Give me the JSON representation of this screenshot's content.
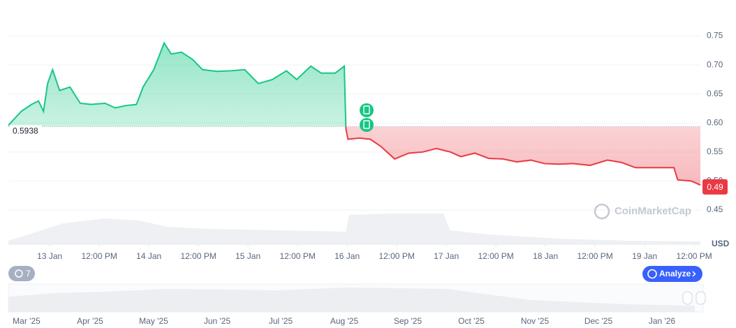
{
  "chart_data": {
    "type": "line",
    "x": [
      -10,
      -6.9,
      -4.4,
      -2.7,
      -1.5,
      -0.5,
      0.7,
      2.4,
      4.9,
      7.4,
      10,
      13.4,
      15.9,
      18.4,
      21,
      22.6,
      25.2,
      27.7,
      29.4,
      31.9,
      34.5,
      37,
      40.4,
      43.8,
      47.2,
      50.5,
      53.9,
      57.3,
      59.8,
      63.2,
      65.7,
      69.1,
      71.3,
      71.7,
      72.2,
      75,
      77.6,
      80.1,
      83.5,
      86.9,
      90.3,
      93.6,
      97,
      99.5,
      102.9,
      106.3,
      109.7,
      113.1,
      116.5,
      119.8,
      123.2,
      126.6,
      130.8,
      135,
      138.4,
      141.8,
      145.2,
      148.6,
      151.1,
      152,
      155.3,
      157.5
    ],
    "values": [
      0.596,
      0.62,
      0.632,
      0.638,
      0.62,
      0.668,
      0.692,
      0.656,
      0.662,
      0.634,
      0.632,
      0.634,
      0.626,
      0.63,
      0.632,
      0.662,
      0.692,
      0.738,
      0.719,
      0.722,
      0.71,
      0.692,
      0.689,
      0.69,
      0.692,
      0.668,
      0.675,
      0.69,
      0.675,
      0.698,
      0.686,
      0.686,
      0.698,
      0.59,
      0.572,
      0.574,
      0.572,
      0.56,
      0.538,
      0.548,
      0.55,
      0.556,
      0.55,
      0.542,
      0.548,
      0.539,
      0.538,
      0.533,
      0.536,
      0.53,
      0.529,
      0.53,
      0.527,
      0.536,
      0.532,
      0.523,
      0.523,
      0.523,
      0.523,
      0.502,
      0.5,
      0.493
    ],
    "up_color": "#16c784",
    "down_color": "#ea3943",
    "baseline": 0.5938,
    "current_price": 0.49,
    "xlim": [
      -10,
      157.5
    ],
    "xticks": [
      {
        "value": 0,
        "label": "13 Jan"
      },
      {
        "value": 12,
        "label": "12:00 PM"
      },
      {
        "value": 24,
        "label": "14 Jan"
      },
      {
        "value": 36,
        "label": "12:00 PM"
      },
      {
        "value": 48,
        "label": "15 Jan"
      },
      {
        "value": 60,
        "label": "12:00 PM"
      },
      {
        "value": 72,
        "label": "16 Jan"
      },
      {
        "value": 84,
        "label": "12:00 PM"
      },
      {
        "value": 96,
        "label": "17 Jan"
      },
      {
        "value": 108,
        "label": "12:00 PM"
      },
      {
        "value": 120,
        "label": "18 Jan"
      },
      {
        "value": 132,
        "label": "12:00 PM"
      },
      {
        "value": 144,
        "label": "19 Jan"
      },
      {
        "value": 156,
        "label": "12:00 PM"
      }
    ],
    "ylim": [
      0.4,
      0.8
    ],
    "yticks": [
      0.45,
      {
        "value": 0.5,
        "label": "0.50"
      },
      0.55,
      {
        "value": 0.6,
        "label": "0.60"
      },
      0.65,
      {
        "value": 0.7,
        "label": "0.70"
      },
      0.75
    ],
    "y_unit": "USD",
    "grid": true,
    "watermark": "CoinMarketCap",
    "events_count": "7",
    "analyze_button": "Analyze",
    "navigator_labels": [
      "Mar '25",
      "Apr '25",
      "May '25",
      "Jun '25",
      "Jul '25",
      "Aug '25",
      "Sep '25",
      "Oct '25",
      "Nov '25",
      "Dec '25",
      "Jan '26"
    ]
  }
}
